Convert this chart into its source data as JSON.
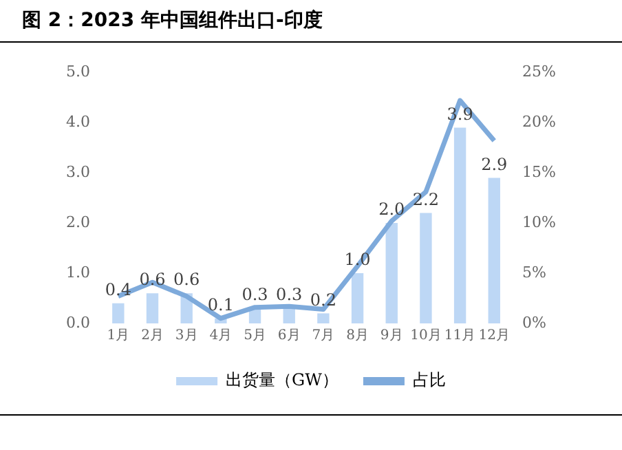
{
  "chart_data": {
    "type": "bar",
    "title": "图 2：2023 年中国组件出口-印度",
    "categories": [
      "1月",
      "2月",
      "3月",
      "4月",
      "5月",
      "6月",
      "7月",
      "8月",
      "9月",
      "10月",
      "11月",
      "12月"
    ],
    "series": [
      {
        "name": "出货量（GW）",
        "color": "#bdd7f5",
        "values": [
          0.4,
          0.6,
          0.6,
          0.1,
          0.3,
          0.3,
          0.2,
          1.0,
          2.0,
          2.2,
          3.9,
          2.9
        ],
        "value_labels": [
          "0.4",
          "0.6",
          "0.6",
          "0.1",
          "0.3",
          "0.3",
          "0.2",
          "1.0",
          "2.0",
          "2.2",
          "3.9",
          "2.9"
        ]
      },
      {
        "name": "占比",
        "type": "line",
        "axis": "y2",
        "color": "#7eaadb",
        "values": [
          2.7,
          4.1,
          2.7,
          0.5,
          1.6,
          1.7,
          1.4,
          5.7,
          10.2,
          13.1,
          22.2,
          18.2
        ]
      }
    ],
    "ylim": [
      0,
      5
    ],
    "yticks": [
      {
        "value": 0,
        "label": "0.0"
      },
      {
        "value": 1,
        "label": "1.0"
      },
      {
        "value": 2,
        "label": "2.0"
      },
      {
        "value": 3,
        "label": "3.0"
      },
      {
        "value": 4,
        "label": "4.0"
      },
      {
        "value": 5,
        "label": "5.0"
      }
    ],
    "y2lim": [
      0,
      25
    ],
    "y2ticks": [
      {
        "value": 0,
        "label": "0%"
      },
      {
        "value": 5,
        "label": "5%"
      },
      {
        "value": 10,
        "label": "10%"
      },
      {
        "value": 15,
        "label": "15%"
      },
      {
        "value": 20,
        "label": "20%"
      },
      {
        "value": 25,
        "label": "25%"
      }
    ],
    "grid": false,
    "legend": "bottom",
    "marker": "none",
    "line_style": "solid"
  }
}
